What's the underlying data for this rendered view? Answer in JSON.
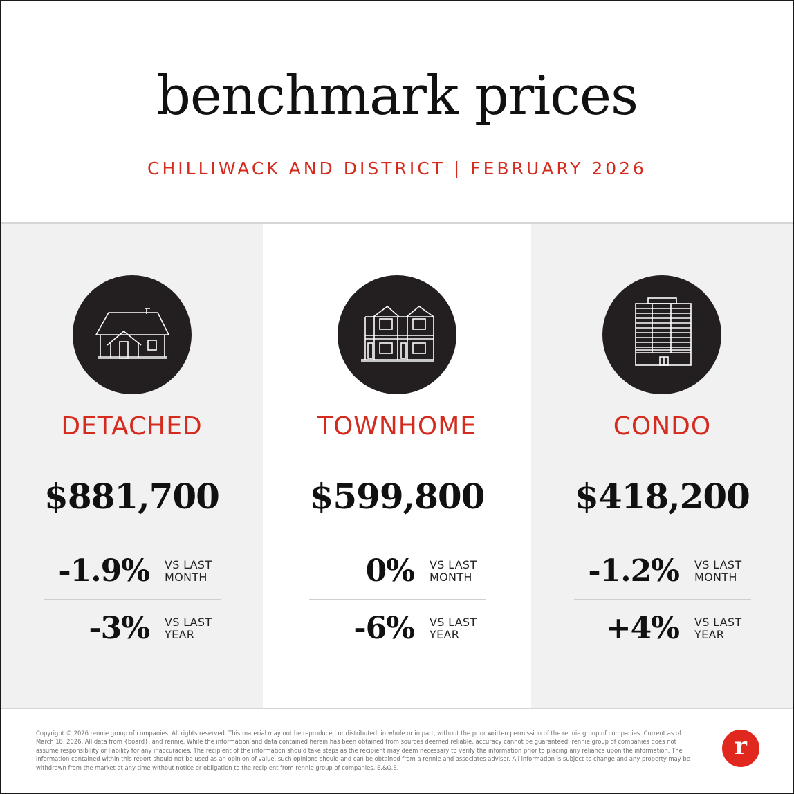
{
  "header": {
    "title": "benchmark prices",
    "subtitle": "CHILLIWACK AND DISTRICT | FEBRUARY 2026"
  },
  "columns": [
    {
      "icon": "detached-house-icon",
      "type": "DETACHED",
      "price": "$881,700",
      "month_change": "-1.9%",
      "month_label_1": "VS LAST",
      "month_label_2": "MONTH",
      "year_change": "-3%",
      "year_label_1": "VS LAST",
      "year_label_2": "YEAR"
    },
    {
      "icon": "townhome-icon",
      "type": "TOWNHOME",
      "price": "$599,800",
      "month_change": "0%",
      "month_label_1": "VS LAST",
      "month_label_2": "MONTH",
      "year_change": "-6%",
      "year_label_1": "VS LAST",
      "year_label_2": "YEAR"
    },
    {
      "icon": "condo-building-icon",
      "type": "CONDO",
      "price": "$418,200",
      "month_change": "-1.2%",
      "month_label_1": "VS LAST",
      "month_label_2": "MONTH",
      "year_change": "+4%",
      "year_label_1": "VS LAST",
      "year_label_2": "YEAR"
    }
  ],
  "footer": {
    "disclaimer": "Copyright © 2026 rennie group of companies. All rights reserved. This material may not be reproduced or distributed, in whole or in part, without the prior written permission of the rennie group of companies. Current as of March 18, 2026. All data from {board}, and rennie. While the information and data contained herein has been obtained from sources deemed reliable, accuracy cannot be guaranteed. rennie group of companies does not assume responsibility or liability for any inaccuracies. The recipient of the information should take steps as the recipient may deem necessary to verify the information prior to placing any reliance upon the information. The information contained within this report should not be used as an opinion of value, such opinions should and can be obtained from a rennie and associates advisor. All information is subject to change and any property may be withdrawn from the market at any time without notice or obligation to the recipient from rennie group of companies. E.&O.E.",
    "logo_letter": "r"
  },
  "colors": {
    "accent_red": "#d42b1e",
    "panel_gray": "#f1f1f1",
    "icon_circle": "#231f20",
    "logo_red": "#e0281f"
  }
}
